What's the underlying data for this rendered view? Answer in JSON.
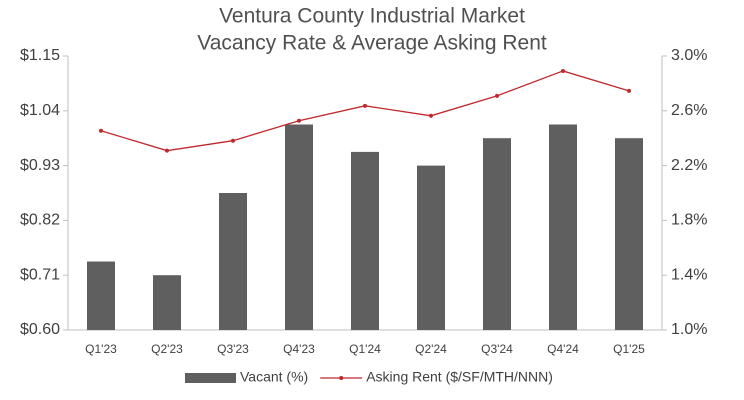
{
  "chart_data": {
    "type": "bar",
    "title": [
      "Ventura County Industrial Market",
      "Vacancy Rate & Average Asking Rent"
    ],
    "categories": [
      "Q1'23",
      "Q2'23",
      "Q3'23",
      "Q4'23",
      "Q1'24",
      "Q2'24",
      "Q3'24",
      "Q4'24",
      "Q1'25"
    ],
    "series": [
      {
        "name": "Vacant (%)",
        "type": "bar",
        "axis": "y2",
        "color": "#5f5f5f",
        "values": [
          1.5,
          1.4,
          2.0,
          2.5,
          2.3,
          2.2,
          2.4,
          2.5,
          2.4
        ]
      },
      {
        "name": "Asking Rent ($/SF/MTH/NNN)",
        "type": "line",
        "color": "#c0282d",
        "values": [
          1.0,
          0.96,
          0.98,
          1.02,
          1.05,
          1.03,
          1.07,
          1.12,
          1.08
        ]
      }
    ],
    "ylim": [
      0.6,
      1.15
    ],
    "yticks": [
      {
        "value": 0.6,
        "label": "$0.60"
      },
      {
        "value": 0.71,
        "label": "$0.71"
      },
      {
        "value": 0.82,
        "label": "$0.82"
      },
      {
        "value": 0.93,
        "label": "$0.93"
      },
      {
        "value": 1.04,
        "label": "$1.04"
      },
      {
        "value": 1.15,
        "label": "$1.15"
      }
    ],
    "y2lim": [
      1.0,
      3.0
    ],
    "y2ticks": [
      {
        "value": 1.0,
        "label": "1.0%"
      },
      {
        "value": 1.4,
        "label": "1.4%"
      },
      {
        "value": 1.8,
        "label": "1.8%"
      },
      {
        "value": 2.2,
        "label": "2.2%"
      },
      {
        "value": 2.6,
        "label": "2.6%"
      },
      {
        "value": 3.0,
        "label": "3.0%"
      }
    ],
    "grid": false,
    "legend": "bottom"
  }
}
